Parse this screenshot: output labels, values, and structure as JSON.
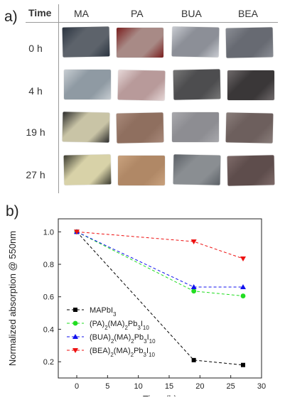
{
  "panel_a": {
    "label": "a)",
    "time_header": "Time",
    "columns": [
      "MA",
      "PA",
      "BUA",
      "BEA"
    ],
    "rows": [
      "0 h",
      "4 h",
      "19 h",
      "27 h"
    ],
    "photos": [
      [
        {
          "base": "#5d636b",
          "accent": "#2b3440"
        },
        {
          "base": "#a88a86",
          "accent": "#7a1e1e"
        },
        {
          "base": "#8c8f97",
          "accent": "#c9ccd2"
        },
        {
          "base": "#676a72",
          "accent": "#8a8d94"
        }
      ],
      [
        {
          "base": "#8f9aa3",
          "accent": "#c7cdd2"
        },
        {
          "base": "#b89a9a",
          "accent": "#e6d8d8"
        },
        {
          "base": "#4d4d4f",
          "accent": "#777777"
        },
        {
          "base": "#3a3738",
          "accent": "#6f6a6b"
        }
      ],
      [
        {
          "base": "#c9c4a6",
          "accent": "#2b2b2b"
        },
        {
          "base": "#8f6f5f",
          "accent": "#a8897a"
        },
        {
          "base": "#8d8d92",
          "accent": "#a9a9ad"
        },
        {
          "base": "#6d5f5d",
          "accent": "#8a7e7b"
        }
      ],
      [
        {
          "base": "#d8d2a8",
          "accent": "#3a3a30"
        },
        {
          "base": "#b08866",
          "accent": "#c9a27e"
        },
        {
          "base": "#8a8e92",
          "accent": "#5b6066"
        },
        {
          "base": "#5e4d4c",
          "accent": "#7e6b69"
        }
      ]
    ]
  },
  "panel_b": {
    "label": "b)"
  },
  "chart_data": {
    "type": "line",
    "xlabel": "Time (h)",
    "ylabel": "Normalized absorption @ 550nm",
    "xlim": [
      -3,
      30
    ],
    "ylim": [
      0.1,
      1.08
    ],
    "xticks": [
      0,
      5,
      10,
      15,
      20,
      25,
      30
    ],
    "yticks": [
      0.2,
      0.4,
      0.6,
      0.8,
      1.0
    ],
    "ytick_labels": [
      "0.2",
      "0.4",
      "0.6",
      "0.8",
      "1.0"
    ],
    "legend_position": "bottom-left",
    "series": [
      {
        "name": "MAPbI3",
        "color": "#000000",
        "marker": "square",
        "x": [
          0,
          19,
          27
        ],
        "y": [
          1.0,
          0.21,
          0.18
        ],
        "legend": [
          {
            "t": "MAPbI"
          },
          {
            "t": "3",
            "sub": true
          }
        ]
      },
      {
        "name": "(PA)2(MA)2Pb3I10",
        "color": "#22dd22",
        "marker": "circle",
        "x": [
          0,
          19,
          27
        ],
        "y": [
          1.0,
          0.635,
          0.605
        ],
        "legend": [
          {
            "t": "(PA)"
          },
          {
            "t": "2",
            "sub": true
          },
          {
            "t": "(MA)"
          },
          {
            "t": "2",
            "sub": true
          },
          {
            "t": "Pb"
          },
          {
            "t": "3",
            "sub": true
          },
          {
            "t": "I"
          },
          {
            "t": "10",
            "sub": true
          }
        ]
      },
      {
        "name": "(BUA)2(MA)2Pb3I10",
        "color": "#1111ee",
        "marker": "triangle-up",
        "x": [
          0,
          19,
          27
        ],
        "y": [
          1.0,
          0.66,
          0.66
        ],
        "legend": [
          {
            "t": "(BUA)"
          },
          {
            "t": "2",
            "sub": true
          },
          {
            "t": "(MA)"
          },
          {
            "t": "2",
            "sub": true
          },
          {
            "t": "Pb"
          },
          {
            "t": "3",
            "sub": true
          },
          {
            "t": "I"
          },
          {
            "t": "10",
            "sub": true
          }
        ]
      },
      {
        "name": "(BEA)2(MA)2Pb3I10",
        "color": "#ee1111",
        "marker": "triangle-down",
        "x": [
          0,
          19,
          27
        ],
        "y": [
          1.0,
          0.94,
          0.835
        ],
        "legend": [
          {
            "t": "(BEA)"
          },
          {
            "t": "2",
            "sub": true
          },
          {
            "t": "(MA)"
          },
          {
            "t": "2",
            "sub": true
          },
          {
            "t": "Pb"
          },
          {
            "t": "3",
            "sub": true
          },
          {
            "t": "I"
          },
          {
            "t": "10",
            "sub": true
          }
        ]
      }
    ]
  }
}
